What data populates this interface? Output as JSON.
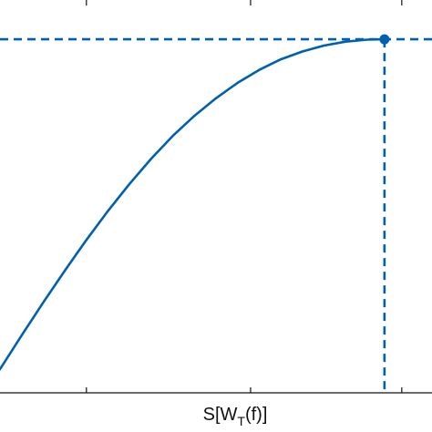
{
  "chart_data": {
    "type": "line",
    "xlabel_main": "S[W",
    "xlabel_sub": "T",
    "xlabel_tail": "(f)]",
    "ylabel": "",
    "title": "",
    "grid": false,
    "line_color": "#0060b0",
    "axis_color": "#111111",
    "xlim": [
      0,
      1.0
    ],
    "ylim": [
      0,
      1.0
    ],
    "x_ticks": [
      0.2,
      0.58,
      0.93
    ],
    "series": [
      {
        "x": [
          0.0,
          0.05,
          0.1,
          0.15,
          0.2,
          0.25,
          0.3,
          0.35,
          0.4,
          0.45,
          0.5,
          0.55,
          0.6,
          0.65,
          0.7,
          0.75,
          0.8,
          0.85,
          0.89
        ],
        "y": [
          0.06,
          0.146,
          0.23,
          0.311,
          0.389,
          0.463,
          0.532,
          0.596,
          0.654,
          0.705,
          0.75,
          0.789,
          0.822,
          0.849,
          0.869,
          0.884,
          0.894,
          0.899,
          0.9
        ]
      }
    ],
    "marker": {
      "x": 0.89,
      "y": 0.9
    }
  }
}
